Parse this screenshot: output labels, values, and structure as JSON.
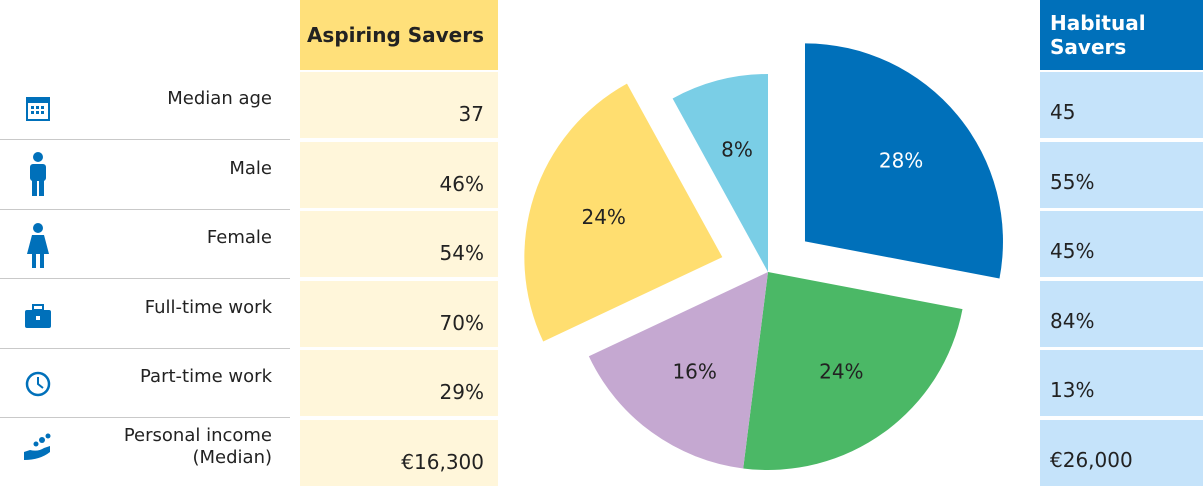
{
  "chart_data": {
    "type": "pie",
    "values": [
      28,
      24,
      16,
      24,
      8
    ],
    "value_labels": [
      "28%",
      "24%",
      "16%",
      "24%",
      "8%"
    ],
    "colors": [
      "#0070BA",
      "#4BB866",
      "#C5A8D1",
      "#FFDE70",
      "#7ACEE6"
    ],
    "exploded": [
      true,
      false,
      false,
      true,
      false
    ]
  },
  "table": {
    "headers": [
      "Aspiring Savers",
      "Habitual Savers"
    ],
    "rows": [
      [
        "Median  age",
        "37",
        "45"
      ],
      [
        "Male",
        "46%",
        "55%"
      ],
      [
        "Female",
        "54%",
        "45%"
      ],
      [
        "Full-time work",
        "70%",
        "84%"
      ],
      [
        "Part-time work",
        "29%",
        "13%"
      ],
      [
        "Personal income (Median)",
        "€16,300",
        "€26,000"
      ]
    ]
  }
}
